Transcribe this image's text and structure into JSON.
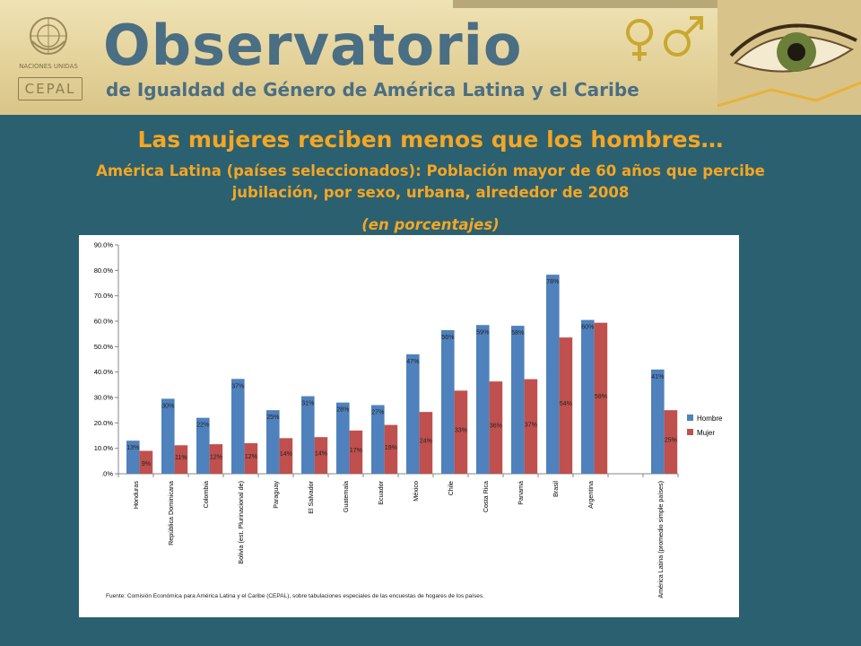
{
  "banner": {
    "logo_un": "NACIONES UNIDAS",
    "logo_cepal": "CEPAL",
    "title": "Observatorio",
    "subtitle": "de Igualdad de Género de América Latina y el Caribe",
    "colors": {
      "title": "#4a6e83",
      "background": "#e4d29a"
    }
  },
  "slide": {
    "headline": "Las mujeres reciben menos que los hombres…",
    "subtitle": "América Latina (países seleccionados): Población mayor de 60 años que percibe jubilación, por sexo, urbana, alrededor de 2008",
    "unit": "(en porcentajes)",
    "text_color": "#f5a623",
    "background": "#2b6070"
  },
  "chart_data": {
    "type": "bar",
    "categories": [
      "Honduras",
      "República Dominicana",
      "Colombia",
      "Bolivia (est. Plurinacional de)",
      "Paraguay",
      "El Salvador",
      "Guatemala",
      "Ecuador",
      "México",
      "Chile",
      "Costa Rica",
      "Panamá",
      "Brasil",
      "Argentina",
      "",
      "América Latina (promedio simple países)"
    ],
    "series": [
      {
        "name": "Hombre",
        "color": "#4f81bd",
        "values": [
          13.0,
          29.5,
          22.0,
          37.3,
          25.0,
          30.5,
          28.0,
          27.0,
          47.0,
          56.5,
          58.5,
          58.2,
          78.3,
          60.5,
          null,
          41.0
        ],
        "labels": [
          "13%",
          "30%",
          "22%",
          "37%",
          "25%",
          "31%",
          "28%",
          "27%",
          "47%",
          "56%",
          "59%",
          "58%",
          "78%",
          "60%",
          "",
          "41%"
        ]
      },
      {
        "name": "Mujer",
        "color": "#c0504d",
        "values": [
          9.0,
          11.2,
          11.6,
          12.0,
          14.0,
          14.4,
          17.0,
          19.2,
          24.3,
          32.7,
          36.3,
          37.2,
          53.6,
          59.4,
          null,
          25.0
        ],
        "labels": [
          "9%",
          "11%",
          "12%",
          "12%",
          "14%",
          "14%",
          "17%",
          "19%",
          "24%",
          "33%",
          "36%",
          "37%",
          "54%",
          "59%",
          "",
          "25%"
        ]
      }
    ],
    "ylim": [
      0,
      90
    ],
    "yticks": [
      0,
      10,
      20,
      30,
      40,
      50,
      60,
      70,
      80,
      90
    ],
    "ytick_labels": [
      ".0%",
      "10.0%",
      "20.0%",
      "30.0%",
      "40.0%",
      "50.0%",
      "60.0%",
      "70.0%",
      "80.0%",
      "90.0%"
    ],
    "legend_position": "right",
    "grid": false,
    "source": "Fuente: Comisión Económica para América Latina y el Caribe (CEPAL), sobre tabulaciones especiales de las encuestas de hogares de los países."
  }
}
